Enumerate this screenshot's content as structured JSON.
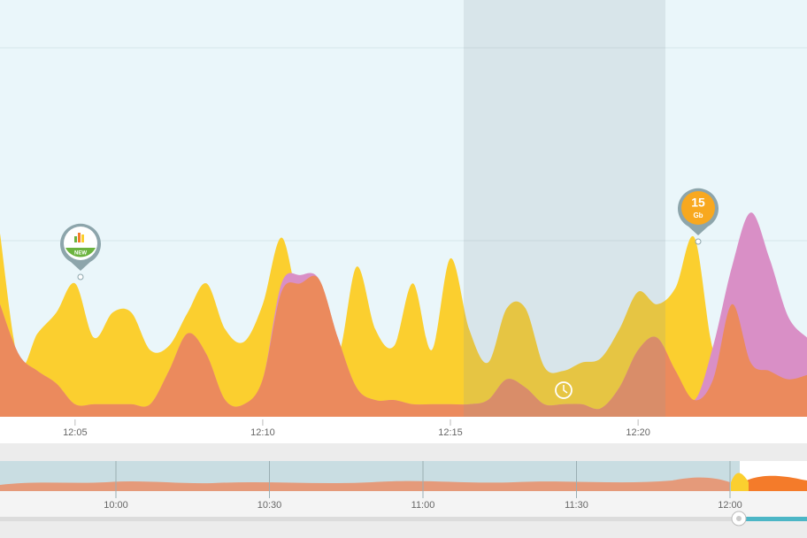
{
  "chart_data": {
    "type": "area",
    "x": [
      3,
      3.5,
      4,
      4.5,
      5,
      5.5,
      6,
      6.5,
      7,
      7.5,
      8,
      8.5,
      9,
      9.5,
      10,
      10.5,
      11,
      11.5,
      12,
      12.5,
      13,
      13.5,
      14,
      14.5,
      15,
      15.5,
      16,
      16.5,
      17,
      17.5,
      18,
      18.5,
      19,
      19.5,
      20,
      20.5,
      21,
      21.5,
      22,
      22.5,
      23,
      23.5,
      24,
      24.5
    ],
    "xlim": [
      3,
      24.5
    ],
    "xticks": [
      {
        "value": 5,
        "label": "12:05"
      },
      {
        "value": 10,
        "label": "12:10"
      },
      {
        "value": 15,
        "label": "12:15"
      },
      {
        "value": 20,
        "label": "12:20"
      }
    ],
    "ylim": [
      0,
      100
    ],
    "series": [
      {
        "color": "#fbcf2f",
        "values": [
          44,
          13,
          20,
          25,
          32,
          19,
          25,
          25,
          16,
          17,
          25,
          32,
          21,
          18,
          27,
          43,
          27,
          32,
          15,
          36,
          21,
          17,
          32,
          16,
          38,
          21,
          13,
          26,
          26,
          12,
          11,
          13,
          14,
          21,
          30,
          27,
          31,
          43,
          16,
          16,
          15,
          12,
          11,
          10
        ]
      },
      {
        "color": "#d98fc6",
        "values": [
          27,
          15,
          11,
          8,
          3,
          3,
          3,
          3,
          3,
          11,
          20,
          15,
          4,
          3,
          9,
          32,
          34,
          33,
          19,
          7,
          4,
          4,
          3,
          3,
          3,
          3,
          4,
          9,
          7,
          3,
          3,
          3,
          2,
          7,
          16,
          19,
          11,
          4,
          17,
          36,
          49,
          38,
          24,
          19
        ]
      },
      {
        "color": "#eb8a5d",
        "values": [
          27,
          15,
          11,
          8,
          3,
          3,
          3,
          3,
          3,
          11,
          20,
          15,
          4,
          3,
          9,
          30,
          32,
          33,
          19,
          7,
          4,
          4,
          3,
          3,
          3,
          3,
          4,
          9,
          7,
          3,
          3,
          3,
          2,
          7,
          16,
          19,
          11,
          4,
          9,
          27,
          13,
          11,
          9,
          10
        ]
      }
    ],
    "annotations": [
      {
        "text": "NEW"
      },
      {
        "text": "15",
        "sub": "Gb"
      }
    ],
    "overview": {
      "xticks": [
        "10:00",
        "10:30",
        "11:00",
        "11:30",
        "12:00"
      ]
    }
  }
}
